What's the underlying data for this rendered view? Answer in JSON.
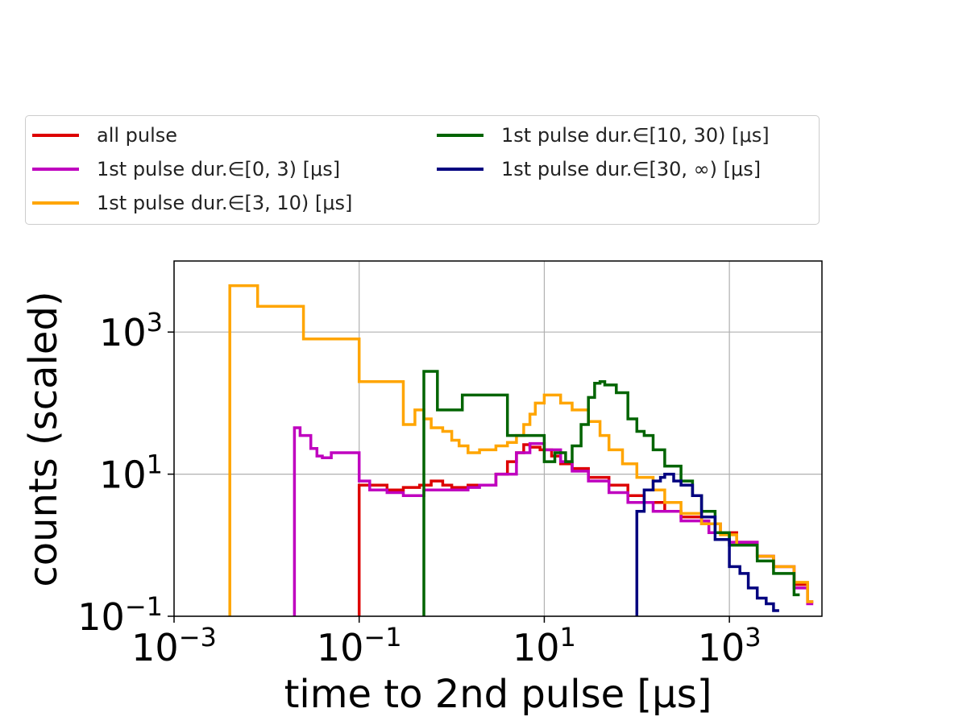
{
  "chart_data": {
    "type": "line",
    "xscale": "log",
    "yscale": "log",
    "xlim": [
      0.001,
      10000
    ],
    "ylim": [
      0.1,
      10000
    ],
    "xlabel": "time to 2nd pulse [μs]",
    "ylabel": "counts (scaled)",
    "xticks": [
      {
        "value": 0.001,
        "base": "10",
        "exp": "−3"
      },
      {
        "value": 0.1,
        "base": "10",
        "exp": "−1"
      },
      {
        "value": 10,
        "base": "10",
        "exp": "1"
      },
      {
        "value": 1000,
        "base": "10",
        "exp": "3"
      }
    ],
    "yticks": [
      {
        "value": 0.1,
        "base": "10",
        "exp": "−1"
      },
      {
        "value": 10,
        "base": "10",
        "exp": "1"
      },
      {
        "value": 1000,
        "base": "10",
        "exp": "3"
      }
    ],
    "grid": true,
    "legend_position": "above plot",
    "series": [
      {
        "name": "all pulse",
        "color": "#dd0000",
        "points": [
          [
            0.1,
            7
          ],
          [
            0.2,
            6
          ],
          [
            0.3,
            6.5
          ],
          [
            0.45,
            7
          ],
          [
            0.6,
            8
          ],
          [
            0.8,
            7
          ],
          [
            1,
            6.5
          ],
          [
            1.5,
            7
          ],
          [
            2,
            7
          ],
          [
            3,
            10
          ],
          [
            4,
            15
          ],
          [
            5,
            20
          ],
          [
            6,
            26
          ],
          [
            7,
            24
          ],
          [
            9,
            22
          ],
          [
            12,
            18
          ],
          [
            15,
            14
          ],
          [
            20,
            12
          ],
          [
            30,
            9
          ],
          [
            50,
            7
          ],
          [
            80,
            5
          ],
          [
            120,
            4
          ],
          [
            200,
            3
          ],
          [
            300,
            2.5
          ],
          [
            500,
            2
          ],
          [
            800,
            1.5
          ],
          [
            1200,
            1.1
          ],
          [
            2000,
            0.7
          ],
          [
            3000,
            0.5
          ],
          [
            5000,
            0.28
          ],
          [
            7000,
            0.16
          ]
        ]
      },
      {
        "name": "1st pulse dur.∈[0, 3) [μs]",
        "color": "#bf00bf",
        "points": [
          [
            0.02,
            45
          ],
          [
            0.023,
            35
          ],
          [
            0.03,
            23
          ],
          [
            0.035,
            18
          ],
          [
            0.04,
            17
          ],
          [
            0.05,
            20
          ],
          [
            0.1,
            8
          ],
          [
            0.13,
            6
          ],
          [
            0.2,
            5.5
          ],
          [
            0.3,
            5
          ],
          [
            0.5,
            6
          ],
          [
            0.8,
            6
          ],
          [
            1,
            6
          ],
          [
            1.5,
            6.5
          ],
          [
            2,
            7
          ],
          [
            3,
            10
          ],
          [
            5,
            20
          ],
          [
            7,
            27
          ],
          [
            10,
            22
          ],
          [
            15,
            15
          ],
          [
            20,
            11
          ],
          [
            30,
            8
          ],
          [
            50,
            5.5
          ],
          [
            80,
            4
          ],
          [
            150,
            3
          ],
          [
            300,
            2.2
          ],
          [
            600,
            1.5
          ],
          [
            1000,
            1.1
          ],
          [
            2000,
            0.7
          ],
          [
            3000,
            0.5
          ],
          [
            5000,
            0.25
          ],
          [
            7000,
            0.15
          ]
        ]
      },
      {
        "name": "1st pulse dur.∈[3, 10) [μs]",
        "color": "#ffa500",
        "points": [
          [
            0.004,
            4500
          ],
          [
            0.008,
            2300
          ],
          [
            0.025,
            800
          ],
          [
            0.1,
            200
          ],
          [
            0.3,
            50
          ],
          [
            0.4,
            80
          ],
          [
            0.5,
            60
          ],
          [
            0.6,
            45
          ],
          [
            0.8,
            40
          ],
          [
            1,
            30
          ],
          [
            1.2,
            25
          ],
          [
            1.5,
            20
          ],
          [
            2,
            22
          ],
          [
            3,
            25
          ],
          [
            4,
            28
          ],
          [
            5,
            35
          ],
          [
            6,
            50
          ],
          [
            7,
            70
          ],
          [
            8,
            100
          ],
          [
            10,
            130
          ],
          [
            12,
            130
          ],
          [
            15,
            100
          ],
          [
            20,
            80
          ],
          [
            30,
            55
          ],
          [
            40,
            35
          ],
          [
            50,
            22
          ],
          [
            70,
            14
          ],
          [
            100,
            9
          ],
          [
            150,
            6
          ],
          [
            200,
            4
          ],
          [
            300,
            2.8
          ],
          [
            500,
            2
          ],
          [
            800,
            1.4
          ],
          [
            1200,
            1
          ],
          [
            2000,
            0.7
          ],
          [
            3000,
            0.5
          ],
          [
            5000,
            0.3
          ],
          [
            7000,
            0.16
          ]
        ]
      },
      {
        "name": "1st pulse dur.∈[10, 30) [μs]",
        "color": "#006400",
        "points": [
          [
            0.5,
            280
          ],
          [
            0.7,
            80
          ],
          [
            1.3,
            130
          ],
          [
            4,
            35
          ],
          [
            10,
            15
          ],
          [
            13,
            20
          ],
          [
            17,
            15
          ],
          [
            20,
            25
          ],
          [
            25,
            50
          ],
          [
            30,
            120
          ],
          [
            35,
            190
          ],
          [
            40,
            200
          ],
          [
            45,
            180
          ],
          [
            60,
            140
          ],
          [
            80,
            60
          ],
          [
            100,
            40
          ],
          [
            120,
            35
          ],
          [
            150,
            22
          ],
          [
            200,
            13
          ],
          [
            300,
            8
          ],
          [
            400,
            5
          ],
          [
            500,
            3
          ],
          [
            700,
            1.5
          ],
          [
            1000,
            1
          ],
          [
            2000,
            0.6
          ],
          [
            3000,
            0.4
          ],
          [
            5000,
            0.2
          ]
        ]
      },
      {
        "name": "1st pulse dur.∈[30, ∞) [μs]",
        "color": "#00007f",
        "points": [
          [
            100,
            3
          ],
          [
            120,
            6
          ],
          [
            150,
            8
          ],
          [
            180,
            9
          ],
          [
            200,
            10
          ],
          [
            250,
            8
          ],
          [
            300,
            7
          ],
          [
            400,
            5
          ],
          [
            500,
            2.5
          ],
          [
            700,
            1.2
          ],
          [
            1000,
            0.5
          ],
          [
            1300,
            0.4
          ],
          [
            1600,
            0.25
          ],
          [
            2000,
            0.18
          ],
          [
            2500,
            0.15
          ],
          [
            3000,
            0.12
          ]
        ]
      }
    ]
  }
}
